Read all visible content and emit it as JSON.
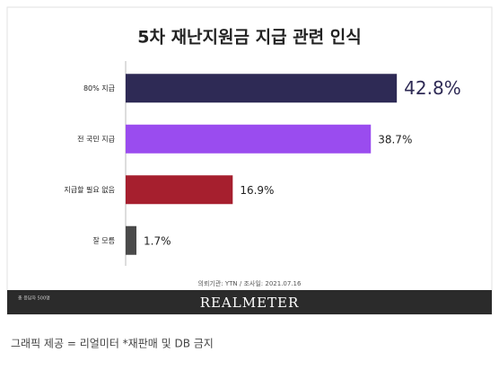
{
  "chart_data": {
    "type": "bar",
    "orientation": "horizontal",
    "title": "5차 재난지원금 지급 관련 인식",
    "categories": [
      "80% 지급",
      "전 국민 지급",
      "지급할 필요 없음",
      "잘 모름"
    ],
    "values": [
      42.8,
      38.7,
      16.9,
      1.7
    ],
    "value_labels": [
      "42.8%",
      "38.7%",
      "16.9%",
      "1.7%"
    ],
    "colors": [
      "#2e2a55",
      "#9a4cef",
      "#a61f2e",
      "#4a4a4a"
    ],
    "xlim": [
      0,
      50
    ],
    "source": "의뢰기관: YTN  /  조사일: 2021.07.16",
    "footnote": "총 응답자 500명",
    "brand": "REALMETER"
  },
  "caption": "그래픽 제공 = 리얼미터 *재판매 및 DB 금지"
}
